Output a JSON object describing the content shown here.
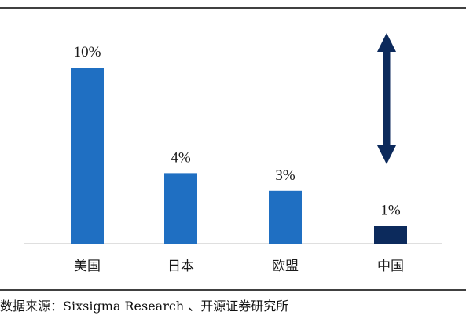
{
  "chart_data": {
    "type": "bar",
    "categories": [
      "美国",
      "日本",
      "欧盟",
      "中国"
    ],
    "values": [
      10,
      4,
      3,
      1
    ],
    "value_labels": [
      "10%",
      "4%",
      "3%",
      "1%"
    ],
    "unit": "%",
    "ylim": [
      0,
      10
    ],
    "grid": false,
    "legend": "none",
    "annotation": "double-headed arrow above 中国 bar"
  },
  "colors": {
    "bar": "#1f6fc2",
    "highlight_bar": "#0c2a5c",
    "arrow": "#0c2a5c",
    "rule": "#000000",
    "axis": "#bfbfbf"
  },
  "highlight_index": 3,
  "source": {
    "label": "数据来源：",
    "text": "Sixsigma Research 、开源证券研究所"
  }
}
